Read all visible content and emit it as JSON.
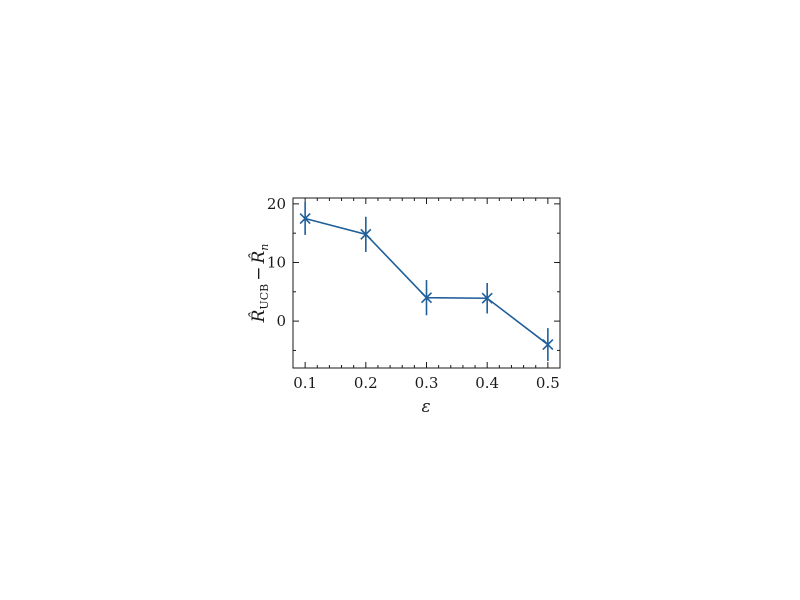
{
  "chart_data": {
    "type": "line",
    "x": [
      0.1,
      0.2,
      0.3,
      0.4,
      0.5
    ],
    "series": [
      {
        "values": [
          17.5,
          14.8,
          4.0,
          3.9,
          -4.0
        ],
        "errors": [
          2.8,
          3.0,
          3.0,
          2.6,
          2.8
        ],
        "color": "#1f5f99",
        "marker": "x"
      }
    ],
    "xlabel": "ε",
    "ylabel": {
      "main": "R̂",
      "sub_ucb": "UCB",
      "minus": "−",
      "sub_n": "n"
    },
    "xlim": [
      0.08,
      0.52
    ],
    "ylim": [
      -8,
      21
    ],
    "xticks": [
      0.1,
      0.2,
      0.3,
      0.4,
      0.5
    ],
    "xtick_labels": [
      "0.1",
      "0.2",
      "0.3",
      "0.4",
      "0.5"
    ],
    "yticks": [
      0,
      10,
      20
    ],
    "ytick_labels": [
      "0",
      "10",
      "20"
    ],
    "grid": false,
    "legend": false
  }
}
